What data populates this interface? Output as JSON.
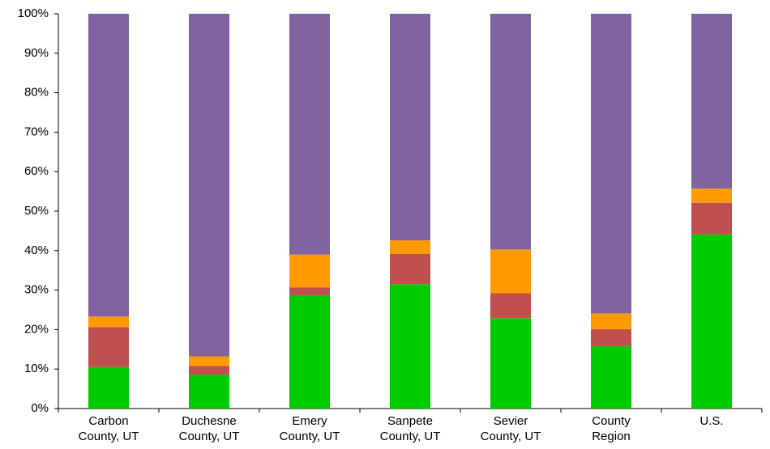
{
  "chart_data": {
    "type": "stacked_bar",
    "categories": [
      "Carbon County, UT",
      "Duchesne County, UT",
      "Emery County, UT",
      "Sanpete County, UT",
      "Sevier County, UT",
      "County Region",
      "U.S."
    ],
    "series": [
      {
        "color": "#00cc00",
        "values": [
          10.5,
          8.6,
          28.6,
          31.5,
          22.9,
          15.8,
          44.1
        ]
      },
      {
        "color": "#c0504d",
        "values": [
          10.1,
          2.2,
          2.1,
          7.7,
          6.3,
          4.3,
          8.0
        ]
      },
      {
        "color": "#ff9900",
        "values": [
          2.7,
          2.4,
          8.3,
          3.4,
          11.1,
          4.0,
          3.6
        ]
      },
      {
        "color": "#8064a2",
        "values": [
          76.7,
          86.8,
          61.0,
          57.4,
          59.7,
          75.9,
          44.3
        ]
      }
    ],
    "ylim": [
      0,
      100
    ],
    "yticks": [
      {
        "value": 0,
        "label": "0%"
      },
      {
        "value": 10,
        "label": "10%"
      },
      {
        "value": 20,
        "label": "20%"
      },
      {
        "value": 30,
        "label": "30%"
      },
      {
        "value": 40,
        "label": "40%"
      },
      {
        "value": 50,
        "label": "50%"
      },
      {
        "value": 60,
        "label": "60%"
      },
      {
        "value": 70,
        "label": "70%"
      },
      {
        "value": 80,
        "label": "80%"
      },
      {
        "value": 90,
        "label": "90%"
      },
      {
        "value": 100,
        "label": "100%"
      }
    ],
    "grid": false
  }
}
